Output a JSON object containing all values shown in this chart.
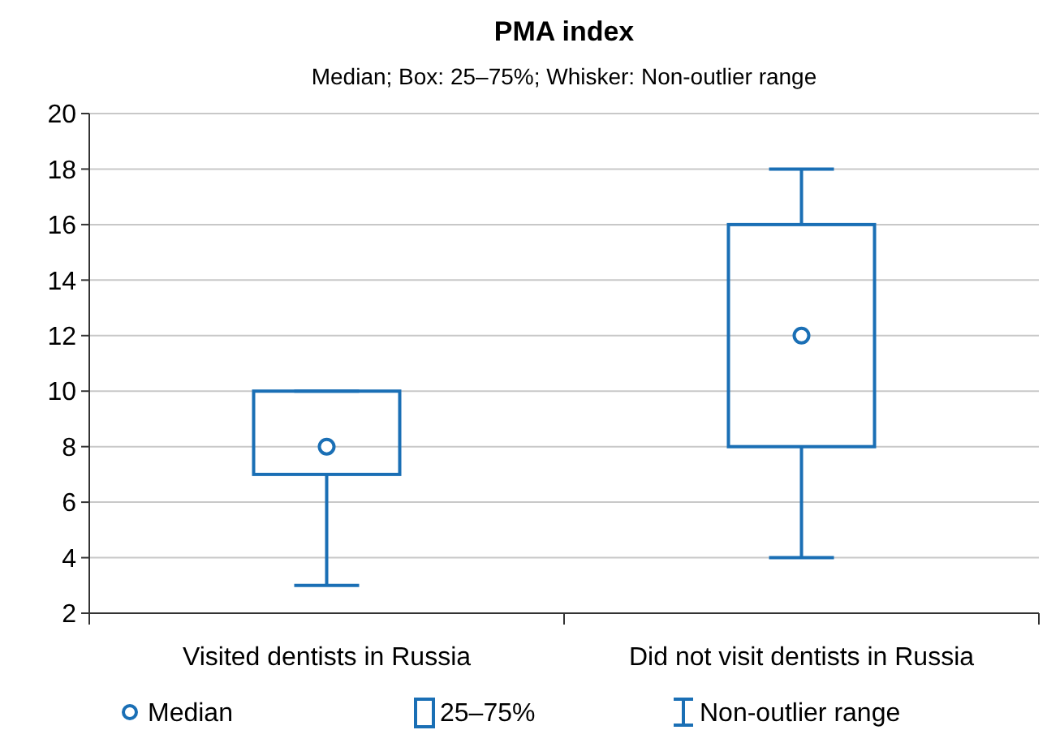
{
  "chart_data": {
    "type": "box",
    "title": "PMA index",
    "subtitle": "Median; Box: 25–75%; Whisker: Non-outlier range",
    "categories": [
      "Visited dentists in Russia",
      "Did not visit dentists in Russia"
    ],
    "series": [
      {
        "color": "#1a6fb5",
        "boxes": [
          {
            "low": 3,
            "q1": 7,
            "median": 8,
            "q3": 10,
            "high": 10
          },
          {
            "low": 4,
            "q1": 8,
            "median": 12,
            "q3": 16,
            "high": 18
          }
        ]
      }
    ],
    "ylim": [
      2,
      20
    ],
    "yticks": [
      2,
      4,
      6,
      8,
      10,
      12,
      14,
      16,
      18,
      20
    ],
    "grid": "y",
    "annotations": [
      "Median",
      "25–75%",
      "Non-outlier range"
    ]
  }
}
